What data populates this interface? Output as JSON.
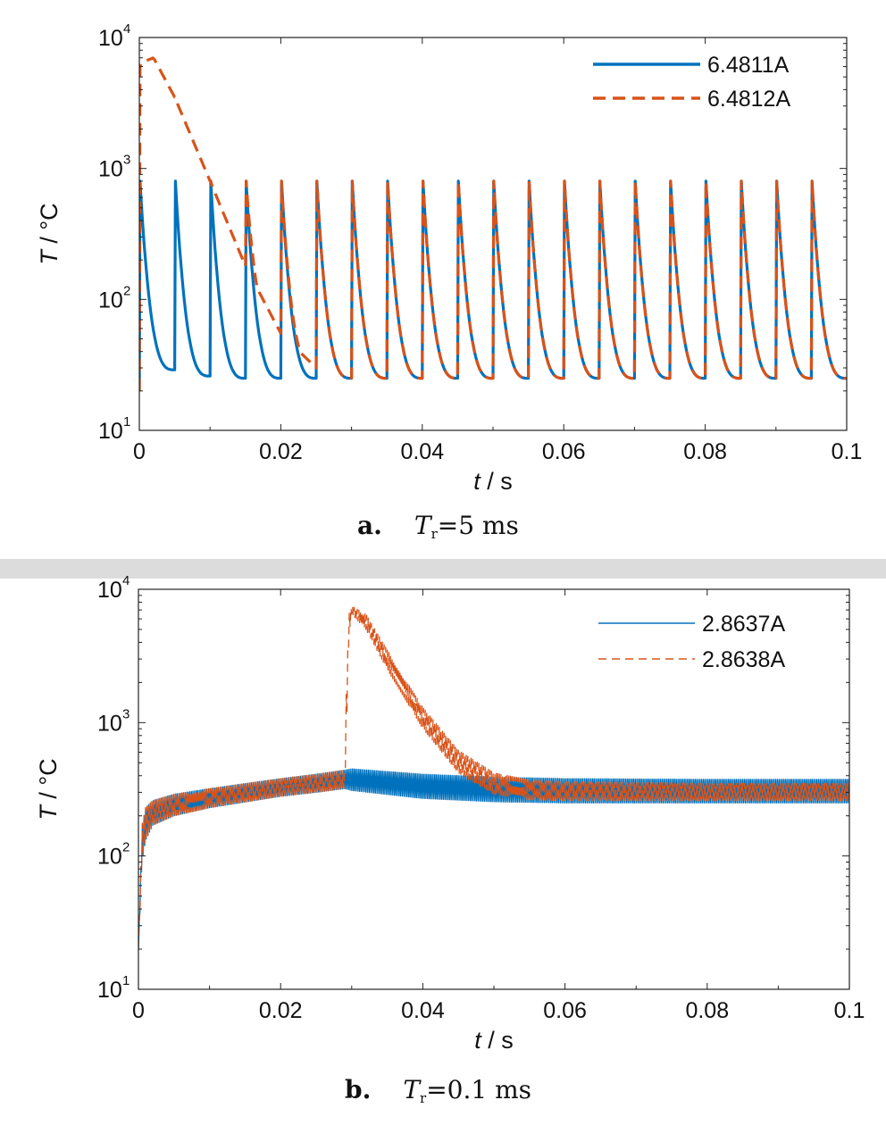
{
  "chart_data": [
    {
      "type": "line",
      "panel_label": "a.",
      "caption_var": "T",
      "caption_sub": "r",
      "caption_rest": "=5 ms",
      "xlabel_var": "t",
      "xlabel_unit": " / s",
      "ylabel_var": "T",
      "ylabel_unit": " / °C",
      "xlim": [
        0,
        0.1
      ],
      "ylim": [
        10,
        10000
      ],
      "yscale": "log",
      "xticks": [
        "0",
        "0.02",
        "0.04",
        "0.06",
        "0.08",
        "0.1"
      ],
      "yticks": [
        {
          "base": "10",
          "exp": "1"
        },
        {
          "base": "10",
          "exp": "2"
        },
        {
          "base": "10",
          "exp": "3"
        },
        {
          "base": "10",
          "exp": "4"
        }
      ],
      "grid": false,
      "legend_position": "top-right",
      "series": [
        {
          "name": "6.4811A",
          "color": "#0072BD",
          "style": "solid",
          "pulse_period_s": 0.005,
          "peak_C": 800,
          "x": [
            0,
            0.005,
            0.01,
            0.015,
            0.02,
            0.025,
            0.03,
            0.035,
            0.04,
            0.045,
            0.05,
            0.055,
            0.06,
            0.065,
            0.07,
            0.075,
            0.08,
            0.085,
            0.09,
            0.095,
            0.1
          ],
          "valley_C": [
            20,
            29,
            26,
            25,
            25,
            25,
            25,
            25,
            25,
            25,
            25,
            25,
            25,
            25,
            25,
            25,
            25,
            25,
            25,
            25,
            25
          ]
        },
        {
          "name": "6.4812A",
          "color": "#D95319",
          "style": "dashed",
          "pulse_period_s": 0.005,
          "peak_C": 800,
          "x": [
            0,
            0.0005,
            0.002,
            0.005,
            0.01,
            0.015,
            0.02,
            0.025,
            0.03,
            0.035,
            0.04,
            0.05,
            0.06,
            0.07,
            0.08,
            0.09,
            0.1
          ],
          "envelope_C": [
            6000,
            6500,
            7000,
            3500,
            800,
            180,
            55,
            30,
            25,
            25,
            25,
            25,
            25,
            25,
            25,
            25,
            25
          ]
        }
      ]
    },
    {
      "type": "line",
      "panel_label": "b.",
      "caption_var": "T",
      "caption_sub": "r",
      "caption_rest": "=0.1 ms",
      "xlabel_var": "t",
      "xlabel_unit": " / s",
      "ylabel_var": "T",
      "ylabel_unit": " / °C",
      "xlim": [
        0,
        0.1
      ],
      "ylim": [
        10,
        10000
      ],
      "yscale": "log",
      "xticks": [
        "0",
        "0.02",
        "0.04",
        "0.06",
        "0.08",
        "0.1"
      ],
      "yticks": [
        {
          "base": "10",
          "exp": "1"
        },
        {
          "base": "10",
          "exp": "2"
        },
        {
          "base": "10",
          "exp": "3"
        },
        {
          "base": "10",
          "exp": "4"
        }
      ],
      "grid": false,
      "legend_position": "top-right",
      "series": [
        {
          "name": "2.8637A",
          "color": "#0072BD",
          "style": "solid",
          "x": [
            0,
            0.0005,
            0.001,
            0.002,
            0.005,
            0.01,
            0.02,
            0.025,
            0.029,
            0.03,
            0.04,
            0.05,
            0.06,
            0.08,
            0.1
          ],
          "band_low_C": [
            20,
            90,
            130,
            170,
            200,
            230,
            280,
            300,
            320,
            310,
            270,
            255,
            250,
            250,
            250
          ],
          "band_high_C": [
            20,
            170,
            230,
            260,
            290,
            320,
            380,
            410,
            440,
            450,
            410,
            390,
            380,
            375,
            375
          ]
        },
        {
          "name": "2.8638A",
          "color": "#D95319",
          "style": "dashed",
          "x": [
            0,
            0.0005,
            0.001,
            0.002,
            0.005,
            0.01,
            0.02,
            0.025,
            0.029,
            0.0292,
            0.0296,
            0.03,
            0.032,
            0.035,
            0.04,
            0.045,
            0.05,
            0.055,
            0.06,
            0.08,
            0.1
          ],
          "band_low_C": [
            20,
            90,
            130,
            170,
            200,
            230,
            280,
            300,
            320,
            600,
            4500,
            6500,
            5000,
            2500,
            900,
            420,
            290,
            265,
            260,
            260,
            260
          ],
          "band_high_C": [
            20,
            170,
            230,
            260,
            290,
            320,
            380,
            410,
            440,
            1500,
            6500,
            7500,
            6500,
            3500,
            1300,
            620,
            420,
            370,
            360,
            350,
            350
          ]
        }
      ]
    }
  ]
}
